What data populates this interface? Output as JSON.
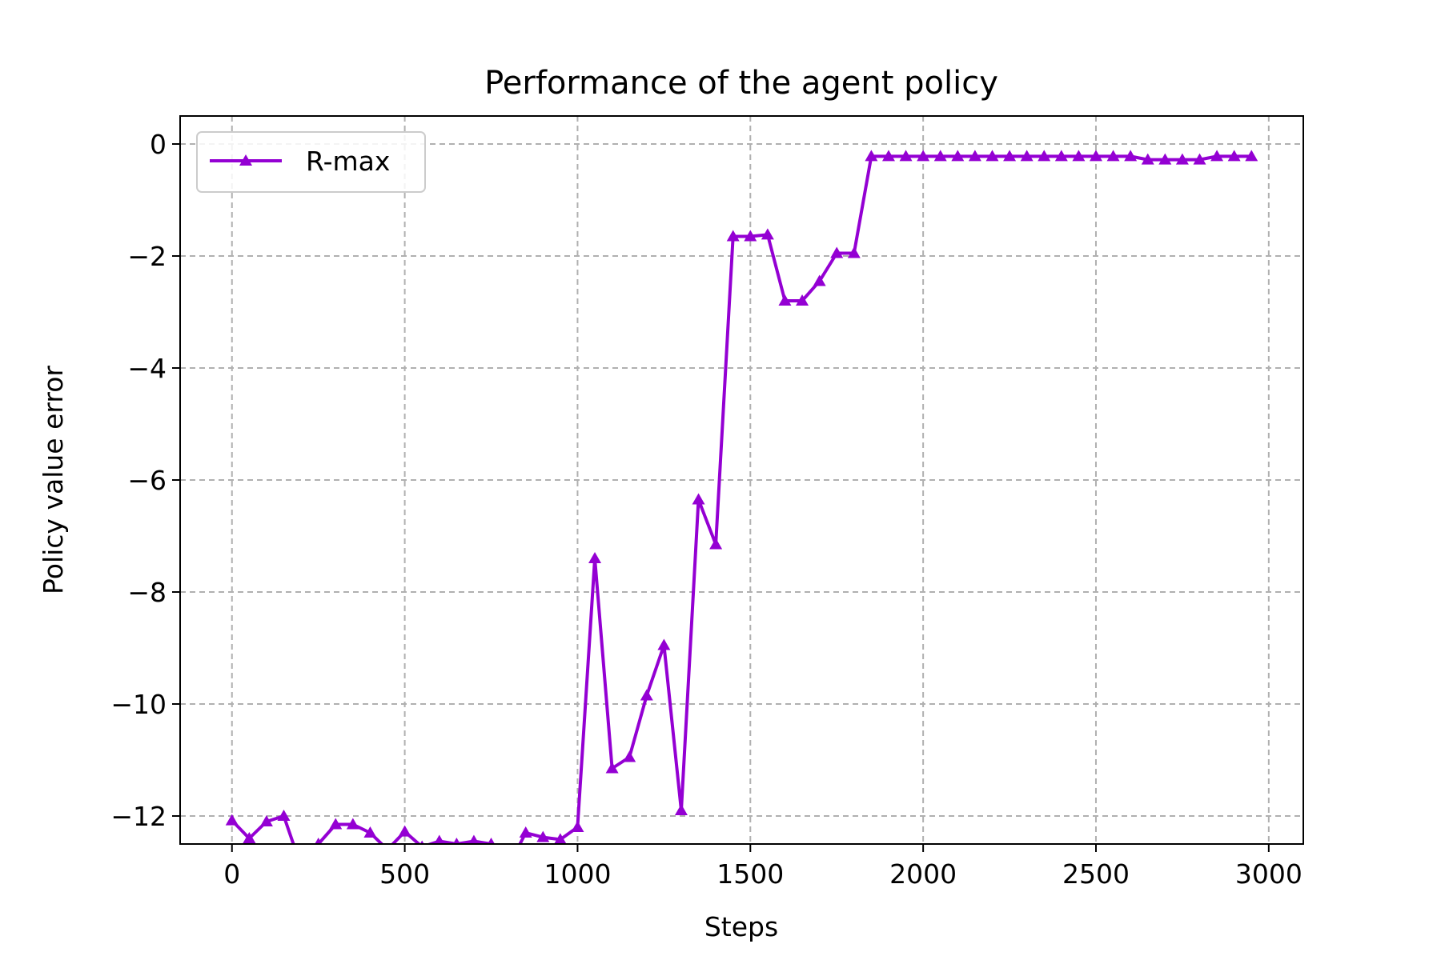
{
  "chart_data": {
    "type": "line",
    "title": "Performance of the agent policy",
    "xlabel": "Steps",
    "ylabel": "Policy value error",
    "xlim": [
      -150,
      3100
    ],
    "ylim": [
      -12.5,
      0.5
    ],
    "xticks": [
      0,
      500,
      1000,
      1500,
      2000,
      2500,
      3000
    ],
    "xtick_labels": [
      "0",
      "500",
      "1000",
      "1500",
      "2000",
      "2500",
      "3000"
    ],
    "yticks": [
      0,
      -2,
      -4,
      -6,
      -8,
      -10,
      -12
    ],
    "ytick_labels": [
      "0",
      "−2",
      "−4",
      "−6",
      "−8",
      "−10",
      "−12"
    ],
    "grid": true,
    "legend_position": "upper-left",
    "series": [
      {
        "name": "R-max",
        "color": "#9400d3",
        "marker": "triangle-up",
        "x": [
          0,
          50,
          100,
          150,
          200,
          250,
          300,
          350,
          400,
          450,
          500,
          550,
          600,
          650,
          700,
          750,
          800,
          850,
          900,
          950,
          1000,
          1050,
          1100,
          1150,
          1200,
          1250,
          1300,
          1350,
          1400,
          1450,
          1500,
          1550,
          1600,
          1650,
          1700,
          1750,
          1800,
          1850,
          1900,
          1950,
          2000,
          2050,
          2100,
          2150,
          2200,
          2250,
          2300,
          2350,
          2400,
          2450,
          2500,
          2550,
          2600,
          2650,
          2700,
          2750,
          2800,
          2850,
          2900,
          2950
        ],
        "y": [
          -12.08,
          -12.4,
          -12.1,
          -12.0,
          -12.9,
          -12.5,
          -12.15,
          -12.15,
          -12.3,
          -12.6,
          -12.28,
          -12.55,
          -12.45,
          -12.5,
          -12.45,
          -12.5,
          -12.9,
          -12.3,
          -12.38,
          -12.42,
          -12.2,
          -7.4,
          -11.15,
          -10.95,
          -9.85,
          -8.95,
          -11.9,
          -6.35,
          -7.15,
          -1.65,
          -1.65,
          -1.62,
          -2.8,
          -2.8,
          -2.45,
          -1.95,
          -1.95,
          -0.22,
          -0.22,
          -0.22,
          -0.22,
          -0.22,
          -0.22,
          -0.22,
          -0.22,
          -0.22,
          -0.22,
          -0.22,
          -0.22,
          -0.22,
          -0.22,
          -0.22,
          -0.22,
          -0.28,
          -0.28,
          -0.28,
          -0.28,
          -0.22,
          -0.22,
          -0.22
        ]
      }
    ]
  }
}
